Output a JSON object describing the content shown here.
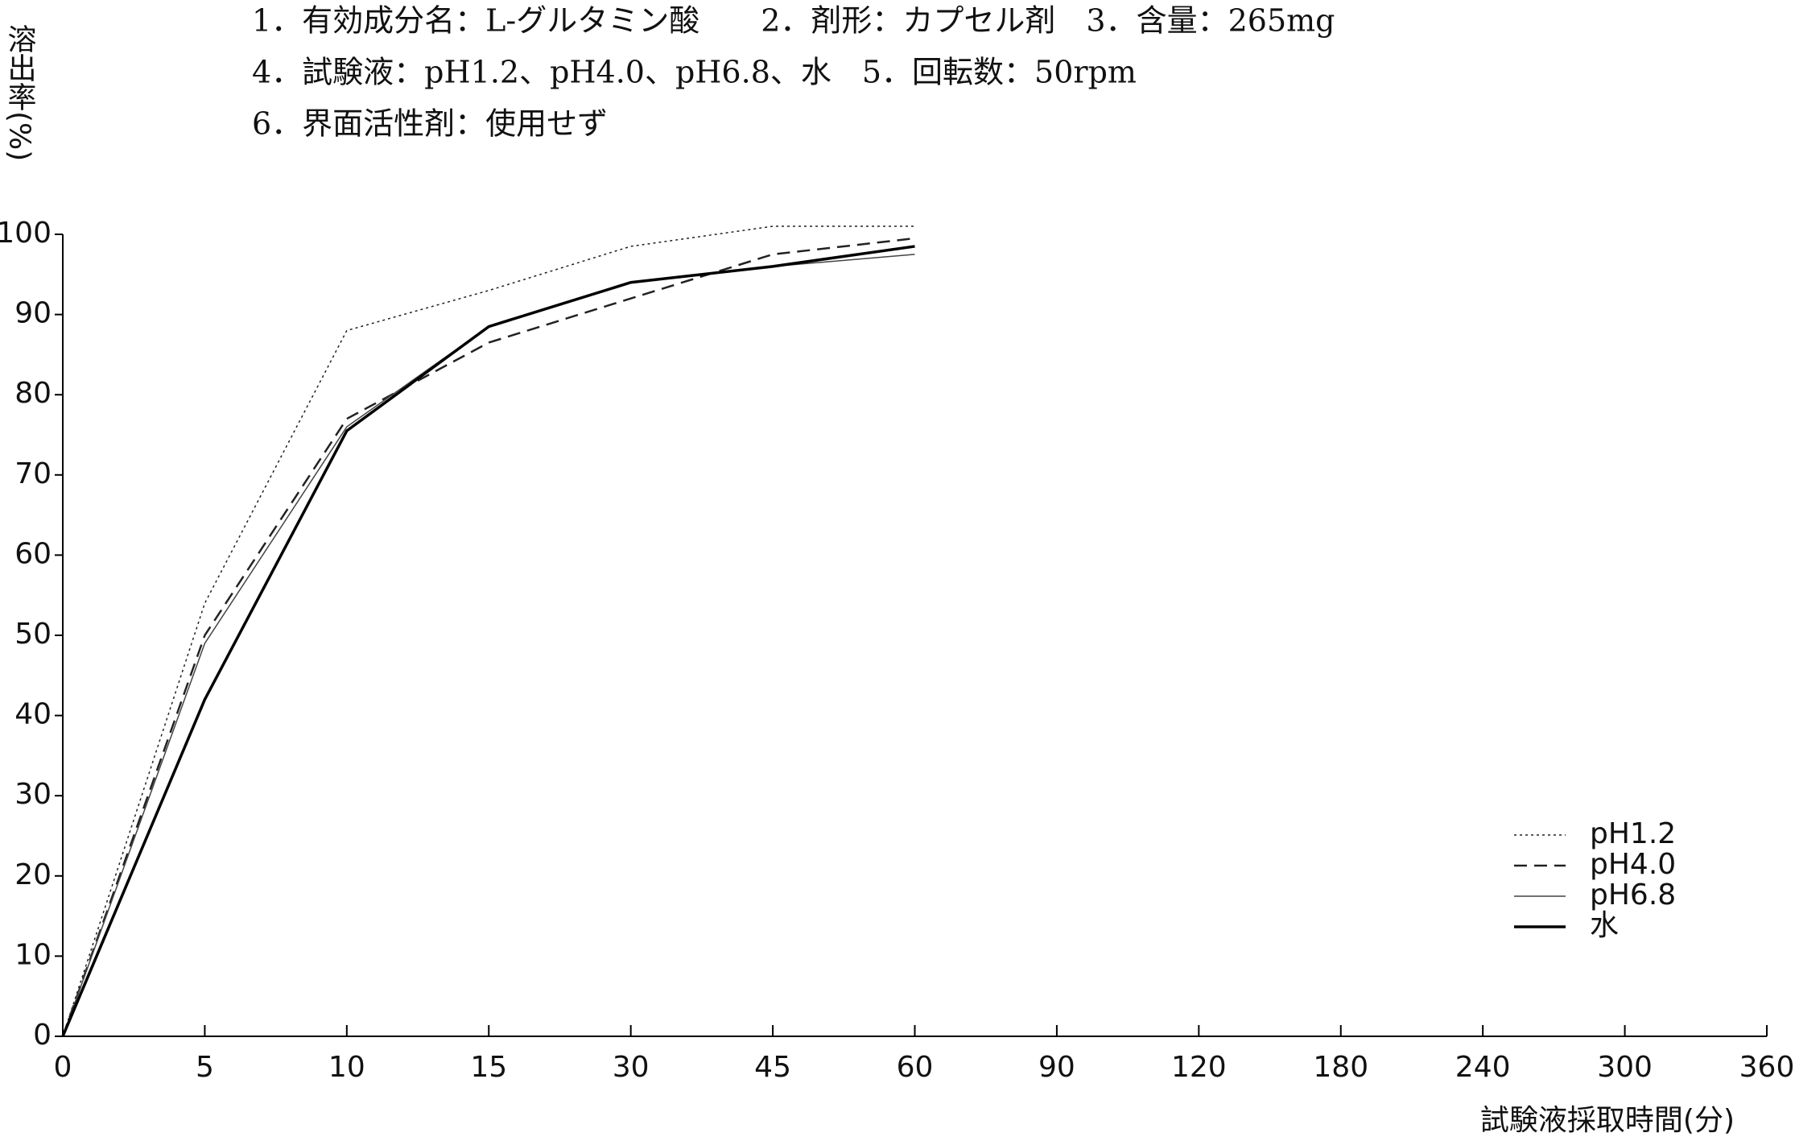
{
  "chart_data": {
    "type": "line",
    "annotations": [
      "1．有効成分名：L-グルタミン酸　　2．剤形：カプセル剤　3．含量：265mg",
      "4．試験液：pH1.2、pH4.0、pH6.8、水　5．回転数：50rpm",
      "6．界面活性剤：使用せず"
    ],
    "y_label": "溶出率(%)",
    "x_label": "試験液採取時間(分)",
    "categories": [
      "0",
      "5",
      "10",
      "15",
      "30",
      "45",
      "60",
      "90",
      "120",
      "180",
      "240",
      "300",
      "360"
    ],
    "series": [
      {
        "name": "pH1.2",
        "color": "#222222",
        "line_style": "dotted",
        "values": [
          0,
          54,
          88,
          93,
          98.5,
          101,
          101,
          null,
          null,
          null,
          null,
          null,
          null
        ]
      },
      {
        "name": "pH4.0",
        "color": "#222222",
        "line_style": "dashed",
        "values": [
          0,
          50,
          77,
          86.5,
          92,
          97.5,
          99.5,
          null,
          null,
          null,
          null,
          null,
          null
        ]
      },
      {
        "name": "pH6.8",
        "color": "#444444",
        "line_style": "thin",
        "values": [
          0,
          49,
          76,
          88.5,
          94,
          96,
          97.5,
          null,
          null,
          null,
          null,
          null,
          null
        ]
      },
      {
        "name": "水",
        "color": "#000000",
        "line_style": "thick",
        "values": [
          0,
          42,
          75.5,
          88.5,
          94,
          96,
          98.5,
          null,
          null,
          null,
          null,
          null,
          null
        ]
      }
    ],
    "ylim": [
      0,
      100
    ],
    "yticks": [
      0,
      10,
      20,
      30,
      40,
      50,
      60,
      70,
      80,
      90,
      100
    ],
    "legend": "lower right"
  }
}
